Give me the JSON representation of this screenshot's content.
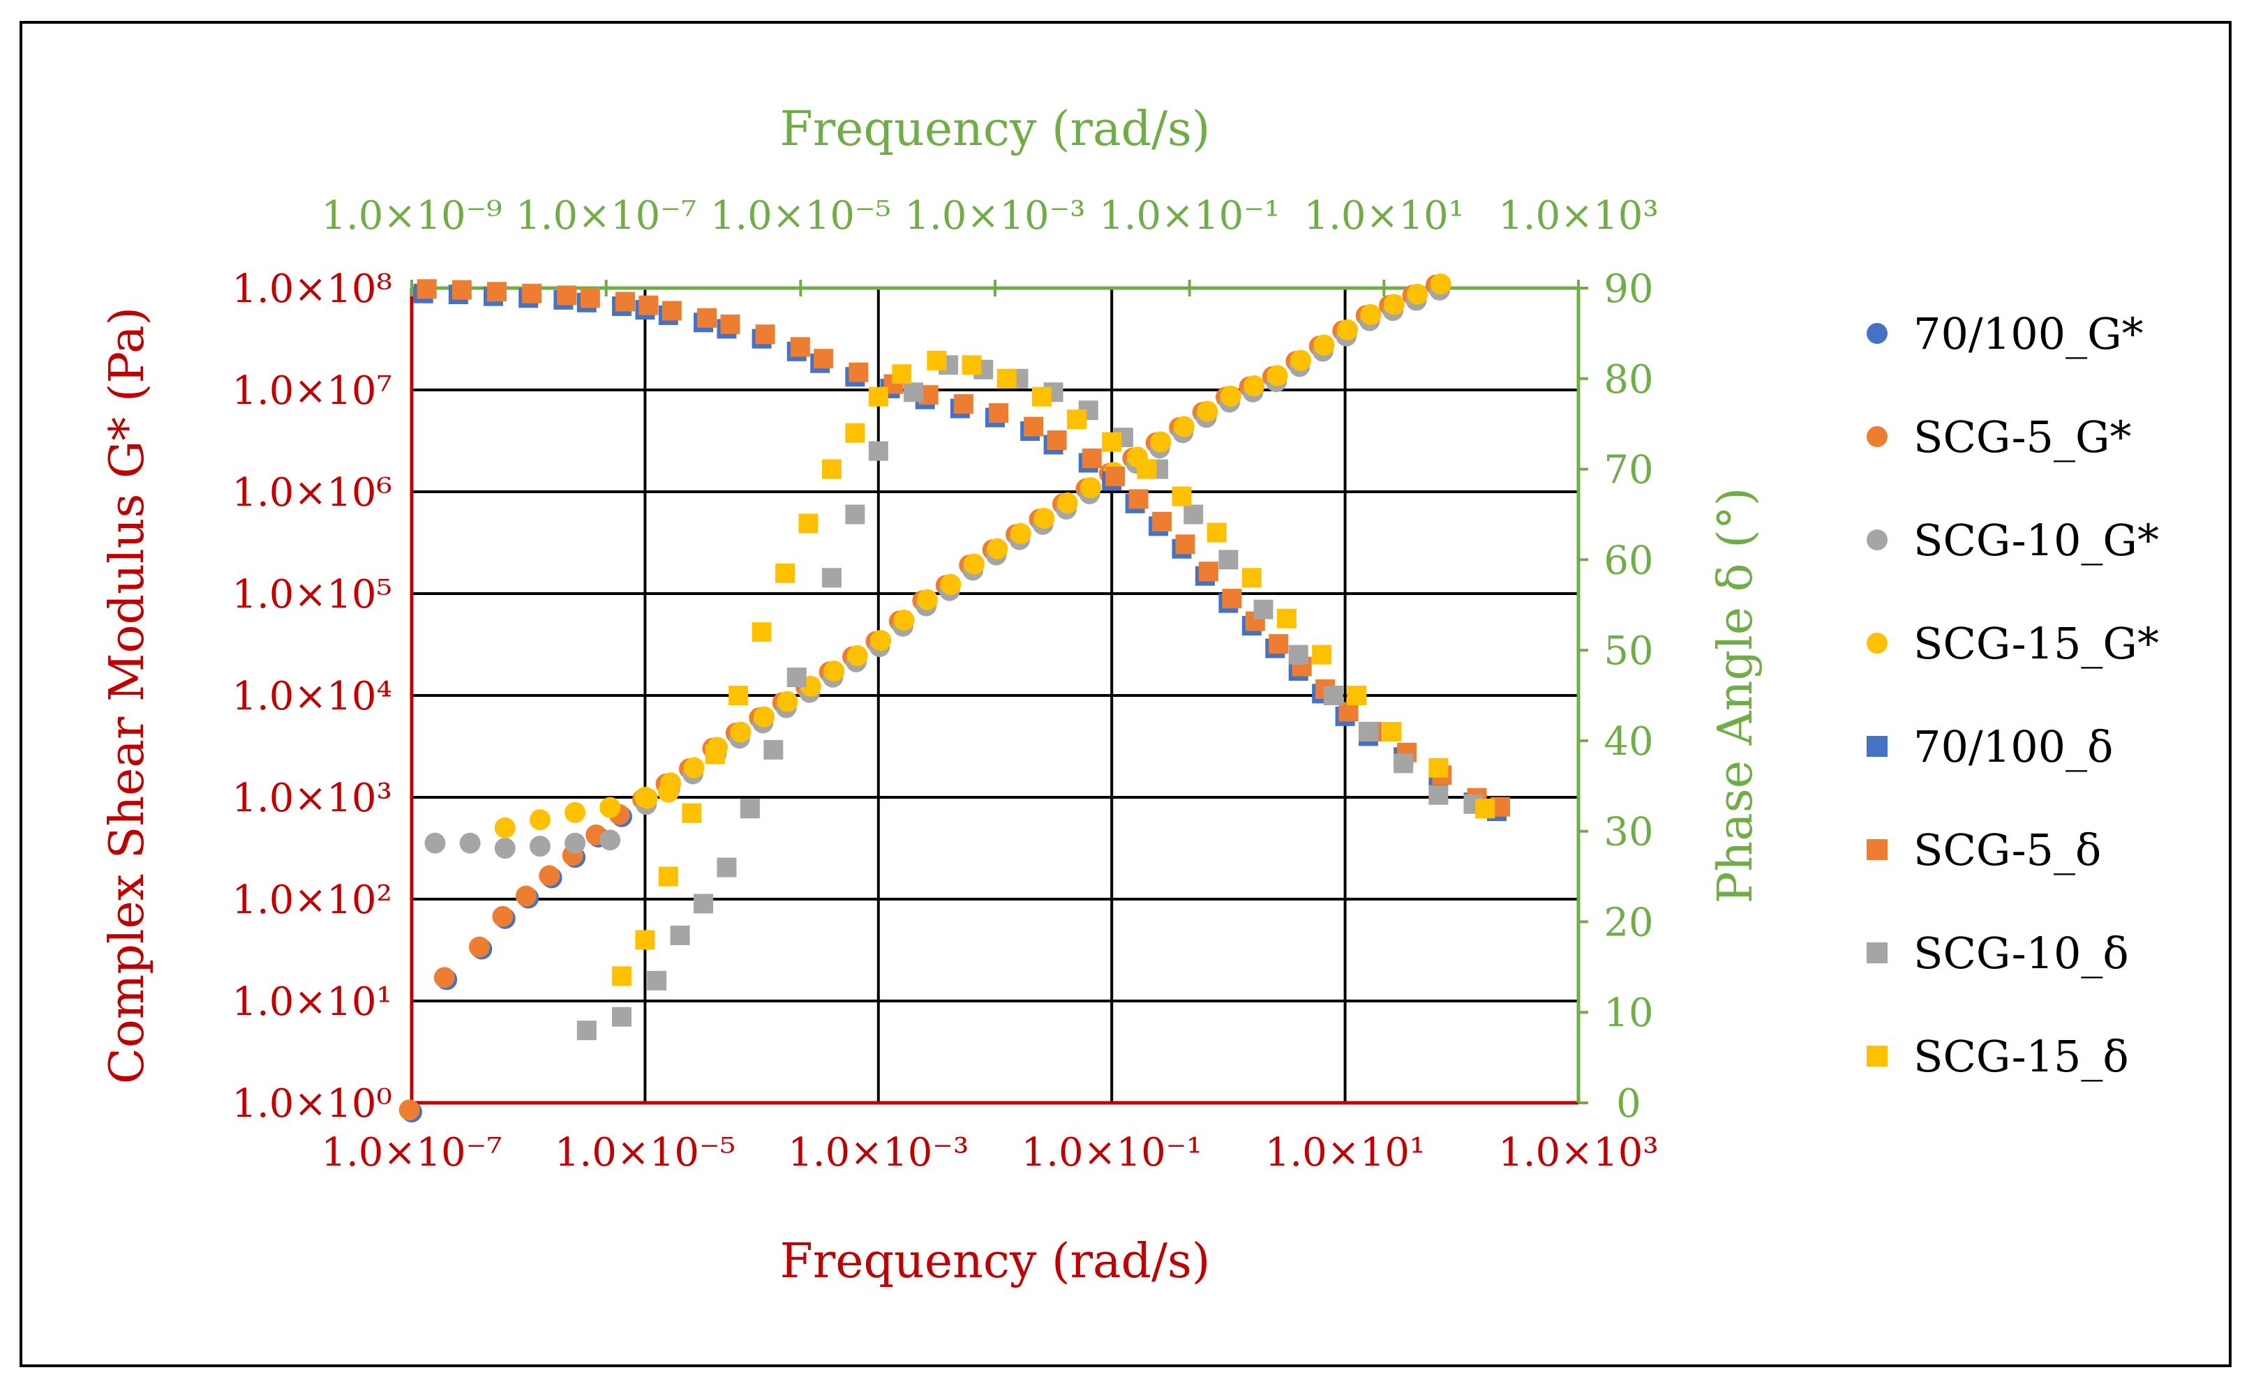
{
  "chart_data": {
    "type": "scatter",
    "title": "",
    "xlabel_bottom": "Frequency (rad/s)",
    "xlabel_top": "Frequency (rad/s)",
    "ylabel_left": "Complex Shear Modulus G* (Pa)",
    "ylabel_right": "Phase Angle δ (°)",
    "x_bottom_ticks": [
      "1.0×10⁻⁷",
      "1.0×10⁻⁵",
      "1.0×10⁻³",
      "1.0×10⁻¹",
      "1.0×10¹",
      "1.0×10³"
    ],
    "x_top_ticks": [
      "1.0×10⁻⁹",
      "1.0×10⁻⁷",
      "1.0×10⁻⁵",
      "1.0×10⁻³",
      "1.0×10⁻¹",
      "1.0×10¹",
      "1.0×10³"
    ],
    "y_left_ticks": [
      "1.0×10⁰",
      "1.0×10¹",
      "1.0×10²",
      "1.0×10³",
      "1.0×10⁴",
      "1.0×10⁵",
      "1.0×10⁶",
      "1.0×10⁷",
      "1.0×10⁸"
    ],
    "y_right_ticks": [
      "0",
      "10",
      "20",
      "30",
      "40",
      "50",
      "60",
      "70",
      "80",
      "90"
    ],
    "x_bottom_log_range": [
      -7,
      3
    ],
    "x_top_log_range": [
      -9,
      3
    ],
    "y_left_log_range": [
      0,
      8
    ],
    "y_right_range": [
      0,
      90
    ],
    "colors": {
      "left_axis": "#C00000",
      "right_axis": "#70AD47",
      "grid": "#000000"
    },
    "legend_position": "right",
    "legend": [
      {
        "label": "70/100_G*",
        "marker": "circle",
        "color": "#4472C4"
      },
      {
        "label": "SCG-5_G*",
        "marker": "circle",
        "color": "#ED7D31"
      },
      {
        "label": "SCG-10_G*",
        "marker": "circle",
        "color": "#A5A5A5"
      },
      {
        "label": "SCG-15_G*",
        "marker": "circle",
        "color": "#FFC000"
      },
      {
        "label": "70/100_δ",
        "marker": "square",
        "color": "#4472C4"
      },
      {
        "label": "SCG-5_δ",
        "marker": "square",
        "color": "#ED7D31"
      },
      {
        "label": "SCG-10_δ",
        "marker": "square",
        "color": "#A5A5A5"
      },
      {
        "label": "SCG-15_δ",
        "marker": "square",
        "color": "#FFC000"
      }
    ],
    "g_master_curve": {
      "axis": "bottom-x / left-y (log)",
      "points": [
        [
          -7.0,
          -0.1
        ],
        [
          -6.7,
          1.2
        ],
        [
          -6.4,
          1.5
        ],
        [
          -6.2,
          1.8
        ],
        [
          -6.0,
          2.0
        ],
        [
          -5.8,
          2.2
        ],
        [
          -5.6,
          2.4
        ],
        [
          -5.4,
          2.6
        ],
        [
          -5.2,
          2.8
        ],
        [
          -5.0,
          2.95
        ],
        [
          -4.8,
          3.1
        ],
        [
          -4.6,
          3.25
        ],
        [
          -4.4,
          3.45
        ],
        [
          -4.2,
          3.6
        ],
        [
          -4.0,
          3.75
        ],
        [
          -3.8,
          3.9
        ],
        [
          -3.6,
          4.05
        ],
        [
          -3.4,
          4.2
        ],
        [
          -3.2,
          4.35
        ],
        [
          -3.0,
          4.5
        ],
        [
          -2.8,
          4.7
        ],
        [
          -2.6,
          4.9
        ],
        [
          -2.4,
          5.05
        ],
        [
          -2.2,
          5.25
        ],
        [
          -2.0,
          5.4
        ],
        [
          -1.8,
          5.55
        ],
        [
          -1.6,
          5.7
        ],
        [
          -1.4,
          5.85
        ],
        [
          -1.2,
          6.0
        ],
        [
          -1.0,
          6.15
        ],
        [
          -0.8,
          6.3
        ],
        [
          -0.6,
          6.45
        ],
        [
          -0.4,
          6.6
        ],
        [
          -0.2,
          6.75
        ],
        [
          0.0,
          6.9
        ],
        [
          0.2,
          7.0
        ],
        [
          0.4,
          7.1
        ],
        [
          0.6,
          7.25
        ],
        [
          0.8,
          7.4
        ],
        [
          1.0,
          7.55
        ],
        [
          1.2,
          7.7
        ],
        [
          1.4,
          7.8
        ],
        [
          1.6,
          7.9
        ],
        [
          1.8,
          8.0
        ]
      ]
    },
    "g_low_freq_plateau": {
      "series": [
        "SCG-10_G*",
        "SCG-15_G*"
      ],
      "points_SCG10": [
        [
          -6.8,
          2.55
        ],
        [
          -6.5,
          2.55
        ],
        [
          -6.2,
          2.5
        ],
        [
          -5.9,
          2.52
        ],
        [
          -5.6,
          2.55
        ],
        [
          -5.3,
          2.58
        ]
      ],
      "points_SCG15": [
        [
          -6.2,
          2.7
        ],
        [
          -5.9,
          2.78
        ],
        [
          -5.6,
          2.85
        ],
        [
          -5.3,
          2.9
        ],
        [
          -5.0,
          3.0
        ],
        [
          -4.8,
          3.05
        ]
      ]
    },
    "phase_curve_base": {
      "axis": "bottom-x / right-y",
      "points": [
        [
          -6.9,
          89.7
        ],
        [
          -6.6,
          89.6
        ],
        [
          -6.3,
          89.4
        ],
        [
          -6.0,
          89.2
        ],
        [
          -5.7,
          89.0
        ],
        [
          -5.5,
          88.7
        ],
        [
          -5.2,
          88.3
        ],
        [
          -5.0,
          87.9
        ],
        [
          -4.8,
          87.3
        ],
        [
          -4.5,
          86.5
        ],
        [
          -4.3,
          85.8
        ],
        [
          -4.0,
          84.7
        ],
        [
          -3.7,
          83.3
        ],
        [
          -3.5,
          82.0
        ],
        [
          -3.2,
          80.5
        ],
        [
          -2.9,
          79.2
        ],
        [
          -2.6,
          78.0
        ],
        [
          -2.3,
          77.0
        ],
        [
          -2.0,
          76.0
        ],
        [
          -1.7,
          74.5
        ],
        [
          -1.5,
          73.0
        ],
        [
          -1.2,
          71.0
        ],
        [
          -1.0,
          69.0
        ],
        [
          -0.8,
          66.5
        ],
        [
          -0.6,
          64.0
        ],
        [
          -0.4,
          61.5
        ],
        [
          -0.2,
          58.5
        ],
        [
          0.0,
          55.5
        ],
        [
          0.2,
          53.0
        ],
        [
          0.4,
          50.5
        ],
        [
          0.6,
          48.0
        ],
        [
          0.8,
          45.5
        ],
        [
          1.0,
          43.0
        ],
        [
          1.2,
          40.8
        ],
        [
          1.5,
          38.5
        ],
        [
          1.8,
          36.0
        ],
        [
          2.1,
          33.5
        ],
        [
          2.3,
          32.5
        ]
      ]
    },
    "phase_scg_low_freq": {
      "points_SCG10": [
        [
          -5.5,
          8.0
        ],
        [
          -5.2,
          9.5
        ],
        [
          -4.9,
          13.5
        ],
        [
          -4.7,
          18.5
        ],
        [
          -4.5,
          22.0
        ],
        [
          -4.3,
          26.0
        ],
        [
          -4.1,
          32.5
        ],
        [
          -3.9,
          39.0
        ],
        [
          -3.7,
          47.0
        ],
        [
          -3.4,
          58.0
        ],
        [
          -3.2,
          65.0
        ],
        [
          -3.0,
          72.0
        ],
        [
          -2.7,
          78.5
        ],
        [
          -2.4,
          81.5
        ],
        [
          -2.1,
          81.0
        ],
        [
          -1.8,
          80.0
        ],
        [
          -1.5,
          78.5
        ],
        [
          -1.2,
          76.5
        ],
        [
          -0.9,
          73.5
        ],
        [
          -0.6,
          70.0
        ],
        [
          -0.3,
          65.0
        ],
        [
          0.0,
          60.0
        ],
        [
          0.3,
          54.5
        ],
        [
          0.6,
          49.5
        ],
        [
          0.9,
          45.0
        ],
        [
          1.2,
          41.0
        ],
        [
          1.5,
          37.5
        ],
        [
          1.8,
          34.0
        ],
        [
          2.1,
          33.0
        ]
      ],
      "points_SCG15": [
        [
          -5.2,
          14.0
        ],
        [
          -5.0,
          18.0
        ],
        [
          -4.8,
          25.0
        ],
        [
          -4.6,
          32.0
        ],
        [
          -4.4,
          38.5
        ],
        [
          -4.2,
          45.0
        ],
        [
          -4.0,
          52.0
        ],
        [
          -3.8,
          58.5
        ],
        [
          -3.6,
          64.0
        ],
        [
          -3.4,
          70.0
        ],
        [
          -3.2,
          74.0
        ],
        [
          -3.0,
          78.0
        ],
        [
          -2.8,
          80.5
        ],
        [
          -2.5,
          82.0
        ],
        [
          -2.2,
          81.5
        ],
        [
          -1.9,
          80.0
        ],
        [
          -1.6,
          78.0
        ],
        [
          -1.3,
          75.5
        ],
        [
          -1.0,
          73.0
        ],
        [
          -0.7,
          70.0
        ],
        [
          -0.4,
          67.0
        ],
        [
          -0.1,
          63.0
        ],
        [
          0.2,
          58.0
        ],
        [
          0.5,
          53.5
        ],
        [
          0.8,
          49.5
        ],
        [
          1.1,
          45.0
        ],
        [
          1.4,
          41.0
        ],
        [
          1.8,
          37.0
        ],
        [
          2.2,
          32.5
        ]
      ]
    }
  }
}
